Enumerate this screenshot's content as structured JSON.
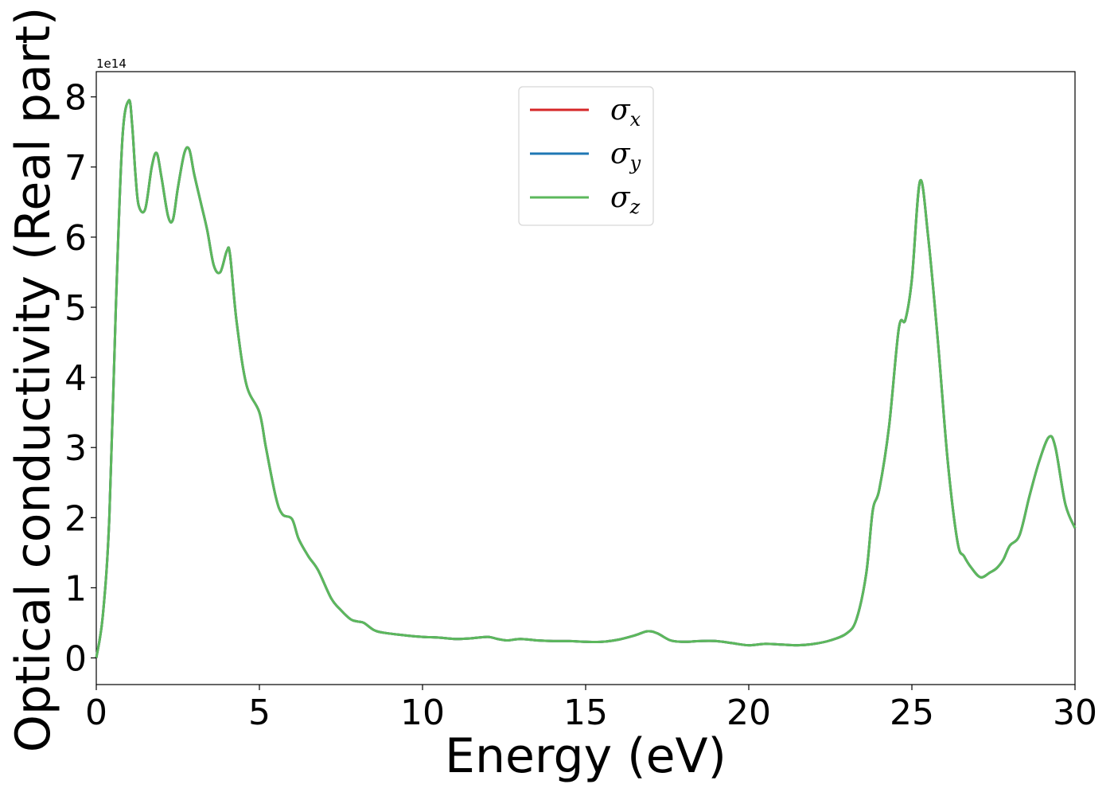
{
  "chart_data": {
    "type": "line",
    "xlabel": "Energy (eV)",
    "ylabel": "Optical conductivity (Real part)",
    "y_offset_text": "1e14",
    "y_scale": 100000000000000.0,
    "xlim": [
      0,
      30
    ],
    "ylim": [
      -0.38,
      8.36
    ],
    "xticks": [
      0,
      5,
      10,
      15,
      20,
      25,
      30
    ],
    "xtick_labels": [
      "0",
      "5",
      "10",
      "15",
      "20",
      "25",
      "30"
    ],
    "yticks": [
      0,
      1,
      2,
      3,
      4,
      5,
      6,
      7,
      8
    ],
    "ytick_labels": [
      "0",
      "1",
      "2",
      "3",
      "4",
      "5",
      "6",
      "7",
      "8"
    ],
    "grid": false,
    "legend_position": "upper center",
    "colors": {
      "sigma_x": "#d62728",
      "sigma_y": "#1f77b4",
      "sigma_z": "#5cb85c"
    },
    "series": [
      {
        "name": "σx",
        "legend_base": "σ",
        "legend_sub": "x",
        "color": "#d62728",
        "x": [
          0,
          0.2,
          0.4,
          0.6,
          0.8,
          1.0,
          1.1,
          1.2,
          1.3,
          1.5,
          1.7,
          1.85,
          2.0,
          2.2,
          2.35,
          2.5,
          2.7,
          2.85,
          3.0,
          3.2,
          3.4,
          3.6,
          3.8,
          4.0,
          4.1,
          4.3,
          4.6,
          5.0,
          5.2,
          5.5,
          5.7,
          6.0,
          6.2,
          6.5,
          6.8,
          7.2,
          7.5,
          7.8,
          8.0,
          8.2,
          8.5,
          8.8,
          9.5,
          10.0,
          10.5,
          11.0,
          11.5,
          12.0,
          12.3,
          12.6,
          13.0,
          13.5,
          14.0,
          14.5,
          15.0,
          15.5,
          16.0,
          16.5,
          16.9,
          17.2,
          17.6,
          18.0,
          18.5,
          19.0,
          19.5,
          20.0,
          20.5,
          21.0,
          21.5,
          22.0,
          22.5,
          23.0,
          23.3,
          23.6,
          23.8,
          24.0,
          24.3,
          24.6,
          24.8,
          25.0,
          25.25,
          25.5,
          25.8,
          26.1,
          26.4,
          26.6,
          26.8,
          27.1,
          27.4,
          27.6,
          27.8,
          28.0,
          28.3,
          28.6,
          28.9,
          29.2,
          29.4,
          29.7,
          30.0
        ],
        "y": [
          0,
          0.6,
          2.0,
          5.0,
          7.4,
          7.95,
          7.6,
          6.9,
          6.45,
          6.4,
          7.0,
          7.2,
          6.85,
          6.3,
          6.25,
          6.7,
          7.2,
          7.25,
          6.9,
          6.5,
          6.1,
          5.6,
          5.5,
          5.8,
          5.75,
          4.8,
          3.9,
          3.5,
          3.0,
          2.3,
          2.05,
          1.98,
          1.7,
          1.45,
          1.25,
          0.85,
          0.68,
          0.55,
          0.52,
          0.5,
          0.4,
          0.36,
          0.32,
          0.3,
          0.29,
          0.27,
          0.28,
          0.3,
          0.27,
          0.25,
          0.27,
          0.25,
          0.24,
          0.24,
          0.23,
          0.23,
          0.26,
          0.32,
          0.38,
          0.35,
          0.25,
          0.23,
          0.24,
          0.24,
          0.21,
          0.18,
          0.2,
          0.19,
          0.18,
          0.2,
          0.25,
          0.35,
          0.55,
          1.2,
          2.1,
          2.4,
          3.3,
          4.7,
          4.82,
          5.4,
          6.8,
          6.0,
          4.5,
          2.8,
          1.65,
          1.45,
          1.3,
          1.15,
          1.22,
          1.28,
          1.4,
          1.6,
          1.75,
          2.3,
          2.8,
          3.15,
          3.0,
          2.2,
          1.85
        ]
      },
      {
        "name": "σy",
        "legend_base": "σ",
        "legend_sub": "y",
        "color": "#1f77b4",
        "same_as": "σx"
      },
      {
        "name": "σz",
        "legend_base": "σ",
        "legend_sub": "z",
        "color": "#5cb85c",
        "same_as": "σx"
      }
    ]
  }
}
